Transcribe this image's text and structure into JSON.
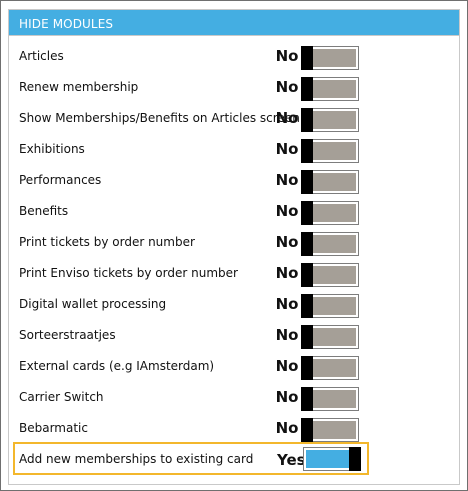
{
  "header": {
    "title": "HIDE MODULES"
  },
  "colors": {
    "header_bg": "#44aee2",
    "toggle_off_track": "#a59f97",
    "toggle_on_track": "#44aee2",
    "knob": "#000000",
    "highlight_border": "#f3b72c"
  },
  "rows": [
    {
      "label": "Articles",
      "value": "No",
      "state": "off"
    },
    {
      "label": "Renew membership",
      "value": "No",
      "state": "off"
    },
    {
      "label": "Show Memberships/Benefits on Articles screen",
      "value": "No",
      "state": "off"
    },
    {
      "label": "Exhibitions",
      "value": "No",
      "state": "off"
    },
    {
      "label": "Performances",
      "value": "No",
      "state": "off"
    },
    {
      "label": "Benefits",
      "value": "No",
      "state": "off"
    },
    {
      "label": "Print tickets by order number",
      "value": "No",
      "state": "off"
    },
    {
      "label": "Print Enviso tickets by order number",
      "value": "No",
      "state": "off"
    },
    {
      "label": "Digital wallet processing",
      "value": "No",
      "state": "off"
    },
    {
      "label": "Sorteerstraatjes",
      "value": "No",
      "state": "off"
    },
    {
      "label": "External cards (e.g IAmsterdam)",
      "value": "No",
      "state": "off"
    },
    {
      "label": "Carrier Switch",
      "value": "No",
      "state": "off"
    },
    {
      "label": "Bebarmatic",
      "value": "No",
      "state": "off"
    },
    {
      "label": "Add new memberships to existing card",
      "value": "Yes",
      "state": "on"
    }
  ]
}
